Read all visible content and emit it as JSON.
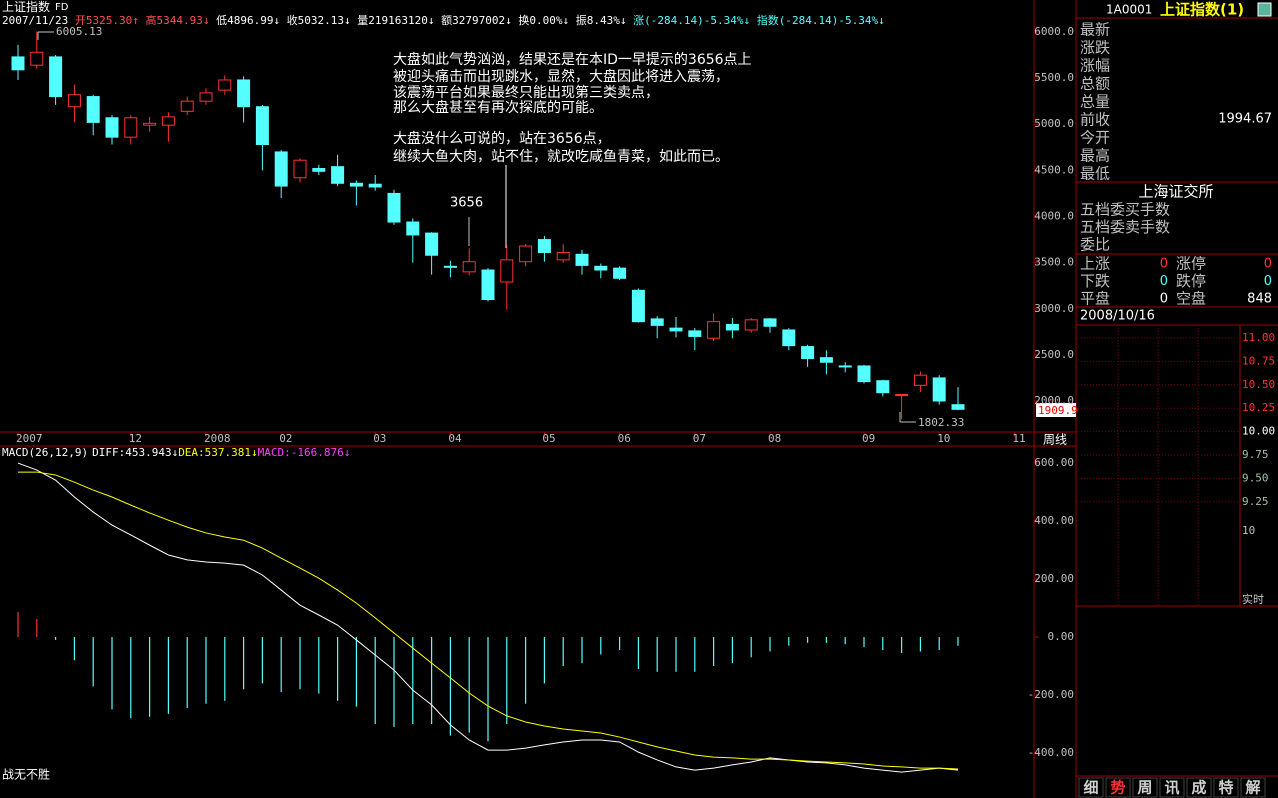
{
  "header": {
    "title": "上证指数",
    "code_suffix": "FD",
    "quote": [
      "2007/11/23",
      "开5325.30↑",
      "高5344.93↓",
      "低4896.99↓",
      "收5032.13↓",
      "量219163120↓",
      "额32797002↓",
      "换0.00%↓",
      "振8.43%↓",
      "涨(-284.14)-5.34%↓",
      "指数(-284.14)-5.34%↓"
    ]
  },
  "chart_data": [
    {
      "type": "candlestick",
      "categories": [
        "2007",
        null,
        null,
        null,
        null,
        null,
        "12",
        null,
        null,
        null,
        "2008",
        null,
        null,
        null,
        "02",
        null,
        null,
        null,
        null,
        "03",
        null,
        null,
        null,
        "04",
        null,
        null,
        null,
        null,
        "05",
        null,
        null,
        null,
        "06",
        null,
        null,
        null,
        "07",
        null,
        null,
        null,
        "08",
        null,
        null,
        null,
        null,
        "09",
        null,
        null,
        null,
        "10",
        null,
        null,
        null,
        "11"
      ],
      "open": [
        5730,
        5640,
        5730,
        5190,
        5300,
        5070,
        4860,
        4990,
        4990,
        5140,
        5250,
        5370,
        5480,
        5190,
        4700,
        4420,
        4520,
        4540,
        4360,
        4350,
        4250,
        3940,
        3820,
        3460,
        3400,
        3420,
        3290,
        3510,
        3750,
        3530,
        3590,
        3460,
        3440,
        3200,
        2890,
        2790,
        2760,
        2680,
        2830,
        2770,
        2890,
        2770,
        2590,
        2470,
        2380,
        2380,
        2220,
        2060,
        2170,
        2250,
        1960,
        null,
        null,
        null
      ],
      "high": [
        5860,
        6005.13,
        5750,
        5430,
        5320,
        5100,
        5100,
        5080,
        5130,
        5300,
        5390,
        5530,
        5520,
        5210,
        4720,
        4630,
        4560,
        4670,
        4390,
        4450,
        4290,
        3980,
        3830,
        3520,
        3656,
        3440,
        3690,
        3700,
        3790,
        3700,
        3640,
        3490,
        3460,
        3220,
        2920,
        2910,
        2790,
        2950,
        2900,
        2900,
        2900,
        2790,
        2610,
        2550,
        2420,
        2390,
        2230,
        2070,
        2320,
        2280,
        2150,
        null,
        null,
        null
      ],
      "low": [
        5480,
        5600,
        5210,
        5020,
        4880,
        4780,
        4780,
        4920,
        4810,
        5100,
        5210,
        5320,
        5020,
        4500,
        4200,
        4370,
        4450,
        4330,
        4120,
        4280,
        3910,
        3500,
        3370,
        3340,
        3360,
        3080,
        2990,
        3460,
        3510,
        3500,
        3370,
        3330,
        3310,
        2850,
        2680,
        2690,
        2550,
        2650,
        2680,
        2740,
        2740,
        2550,
        2370,
        2290,
        2310,
        2190,
        2050,
        1802.33,
        2100,
        1960,
        1900,
        null,
        null,
        null
      ],
      "close": [
        5590,
        5780,
        5300,
        5320,
        5020,
        4860,
        5070,
        5010,
        5080,
        5250,
        5340,
        5480,
        5190,
        4780,
        4330,
        4610,
        4490,
        4360,
        4330,
        4320,
        3940,
        3800,
        3580,
        3450,
        3510,
        3100,
        3530,
        3680,
        3610,
        3610,
        3470,
        3420,
        3330,
        2860,
        2820,
        2760,
        2700,
        2860,
        2770,
        2880,
        2810,
        2600,
        2460,
        2420,
        2370,
        2210,
        2090,
        2070,
        2280,
        2000,
        1909.9,
        null,
        null,
        null
      ],
      "up_color": "#ff3232",
      "down_color": "#54ffff",
      "ylim": [
        1664,
        6130
      ],
      "yticks": [
        {
          "value": 2000,
          "label": "2000.0"
        },
        {
          "value": 2500,
          "label": "2500.0"
        },
        {
          "value": 3000,
          "label": "3000.0"
        },
        {
          "value": 3500,
          "label": "3500.0"
        },
        {
          "value": 4000,
          "label": "4000.0"
        },
        {
          "value": 4500,
          "label": "4500.0"
        },
        {
          "value": 5000,
          "label": "5000.0"
        },
        {
          "value": 5500,
          "label": "5500.0"
        },
        {
          "value": 6000,
          "label": "6000.0"
        }
      ],
      "annotations": [
        "6005.13",
        "3656",
        "1802.33"
      ],
      "last_price_label": "1909.9",
      "commentary": [
        "大盘如此气势汹汹，结果还是在本ID一早提示的3656点上",
        "被迎头痛击而出现跳水，显然，大盘因此将进入震荡，",
        "该震荡平台如果最终只能出现第三类卖点，",
        "那么大盘甚至有再次探底的可能。",
        "大盘没什么可说的，站在3656点，",
        "继续大鱼大肉，站不住，就改吃咸鱼青菜，如此而已。"
      ],
      "period_label": "周线"
    },
    {
      "type": "macd",
      "title": "MACD(26,12,9)",
      "readout": [
        "DIFF:453.943↓",
        "DEA:537.381↓",
        "MACD:-166.876↓"
      ],
      "series": [
        {
          "color": "#ffffff",
          "values": [
            600,
            576,
            541,
            483,
            431,
            386,
            352,
            317,
            283,
            266,
            259,
            255,
            248,
            214,
            162,
            110,
            76,
            41,
            -10,
            -62,
            -114,
            -183,
            -234,
            -303,
            -355,
            -390,
            -390,
            -383,
            -372,
            -362,
            -355,
            -355,
            -362,
            -397,
            -424,
            -448,
            -459,
            -452,
            -441,
            -431,
            -417,
            -424,
            -431,
            -434,
            -441,
            -452,
            -459,
            -466,
            -459,
            -452,
            -459
          ]
        },
        {
          "color": "#ffff00",
          "values": [
            569,
            569,
            559,
            534,
            507,
            483,
            455,
            428,
            403,
            379,
            359,
            345,
            334,
            307,
            272,
            238,
            203,
            162,
            117,
            66,
            14,
            -38,
            -90,
            -141,
            -193,
            -238,
            -272,
            -293,
            -307,
            -317,
            -324,
            -331,
            -345,
            -362,
            -379,
            -393,
            -407,
            -414,
            -417,
            -421,
            -421,
            -424,
            -428,
            -431,
            -434,
            -438,
            -445,
            -448,
            -452,
            -452,
            -455
          ]
        }
      ],
      "histogram": [
        86,
        62,
        -10,
        -80,
        -170,
        -250,
        -280,
        -275,
        -265,
        -245,
        -230,
        -220,
        -180,
        -160,
        -190,
        -180,
        -195,
        -220,
        -240,
        -300,
        -310,
        -300,
        -300,
        -340,
        -330,
        -360,
        -300,
        -230,
        -160,
        -100,
        -90,
        -60,
        -45,
        -110,
        -120,
        -120,
        -120,
        -100,
        -90,
        -70,
        -50,
        -30,
        -20,
        -20,
        -25,
        -35,
        -45,
        -55,
        -50,
        -45,
        -30
      ],
      "up_color": "#ff3232",
      "down_color": "#54ffff",
      "ylim": [
        -500,
        652
      ],
      "yticks": [
        {
          "value": -400,
          "label": "-400.00"
        },
        {
          "value": -200,
          "label": "-200.00"
        },
        {
          "value": 0,
          "label": "0.00"
        },
        {
          "value": 200,
          "label": "200.00"
        },
        {
          "value": 400,
          "label": "400.00"
        },
        {
          "value": 600,
          "label": "600.00"
        }
      ]
    }
  ],
  "footer_left": "战无不胜",
  "side_panel": {
    "code": "1A0001",
    "name": "上证指数(1)",
    "fields": [
      "最新",
      "涨跌",
      "涨幅",
      "总额",
      "总量",
      "前收",
      "今开",
      "最高",
      "最低"
    ],
    "prev_close": "1994.67",
    "exchange": "上海证交所",
    "rows": [
      "五档委买手数",
      "五档委卖手数",
      "委比"
    ],
    "breadth": [
      [
        "上涨",
        "0",
        "涨停",
        "0"
      ],
      [
        "下跌",
        "0",
        "跌停",
        "0"
      ],
      [
        "平盘",
        "0",
        "空盘",
        "848"
      ]
    ],
    "date": "2008/10/16",
    "mini_chart_labels": [
      "11.00",
      "10.75",
      "10.50",
      "10.25",
      "10.00",
      "9.75",
      "9.50",
      "9.25",
      "10"
    ],
    "mini_chart_footer": "实时"
  },
  "tabs": [
    "细",
    "势",
    "周",
    "讯",
    "成",
    "特",
    "解"
  ]
}
